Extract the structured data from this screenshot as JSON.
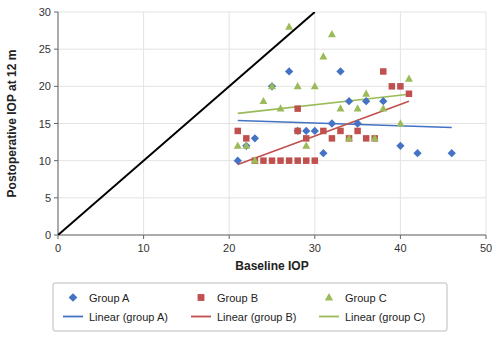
{
  "chart_data": {
    "type": "scatter",
    "xlabel": "Baseline IOP",
    "ylabel": "Postoperative IOP at 12 m",
    "xlim": [
      0,
      50
    ],
    "ylim": [
      0,
      30
    ],
    "xticks": [
      0,
      10,
      20,
      30,
      40,
      50
    ],
    "yticks": [
      0,
      5,
      10,
      15,
      20,
      25,
      30
    ],
    "grid": true,
    "legend": "bottom",
    "series": [
      {
        "type": "line",
        "color": "#000000",
        "line_style": "solid",
        "x": [
          0,
          30
        ],
        "values": [
          0,
          30
        ]
      },
      {
        "name": "Group A",
        "color": "#4472C4",
        "marker": "diamond",
        "x": [
          21,
          22,
          23,
          25,
          27,
          28,
          29,
          30,
          31,
          32,
          33,
          34,
          35,
          36,
          38,
          40,
          42,
          46
        ],
        "values": [
          10,
          12,
          13,
          20,
          22,
          14,
          14,
          14,
          11,
          15,
          22,
          18,
          15,
          18,
          18,
          12,
          11,
          11
        ]
      },
      {
        "name": "Group B",
        "color": "#C0504D",
        "marker": "square",
        "x": [
          21,
          22,
          23,
          24,
          25,
          26,
          27,
          28,
          28,
          28,
          29,
          29,
          30,
          31,
          32,
          33,
          34,
          35,
          36,
          37,
          38,
          39,
          40,
          41
        ],
        "values": [
          14,
          13,
          10,
          10,
          10,
          10,
          10,
          10,
          14,
          17,
          10,
          13,
          10,
          14,
          13,
          14,
          13,
          14,
          13,
          13,
          22,
          20,
          20,
          19
        ]
      },
      {
        "name": "Group C",
        "color": "#9BBB59",
        "marker": "triangle",
        "x": [
          21,
          22,
          23,
          24,
          25,
          26,
          27,
          28,
          29,
          30,
          31,
          32,
          33,
          34,
          35,
          36,
          37,
          38,
          40,
          41
        ],
        "values": [
          12,
          12,
          10,
          18,
          20,
          17,
          28,
          20,
          12,
          20,
          24,
          27,
          17,
          13,
          17,
          19,
          13,
          17,
          15,
          21
        ]
      },
      {
        "name": "Linear (group A)",
        "type": "line",
        "color": "#4472C4",
        "line_style": "solid",
        "x": [
          21,
          46
        ],
        "values": [
          15.402,
          14.4695
        ]
      },
      {
        "name": "Linear (group B)",
        "type": "line",
        "color": "#C0504D",
        "line_style": "solid",
        "x": [
          21,
          41
        ],
        "values": [
          9.4726,
          17.9776
        ]
      },
      {
        "name": "Linear (group C)",
        "type": "line",
        "color": "#9BBB59",
        "line_style": "solid",
        "x": [
          21,
          41
        ],
        "values": [
          16.3597,
          18.9437
        ]
      }
    ]
  }
}
